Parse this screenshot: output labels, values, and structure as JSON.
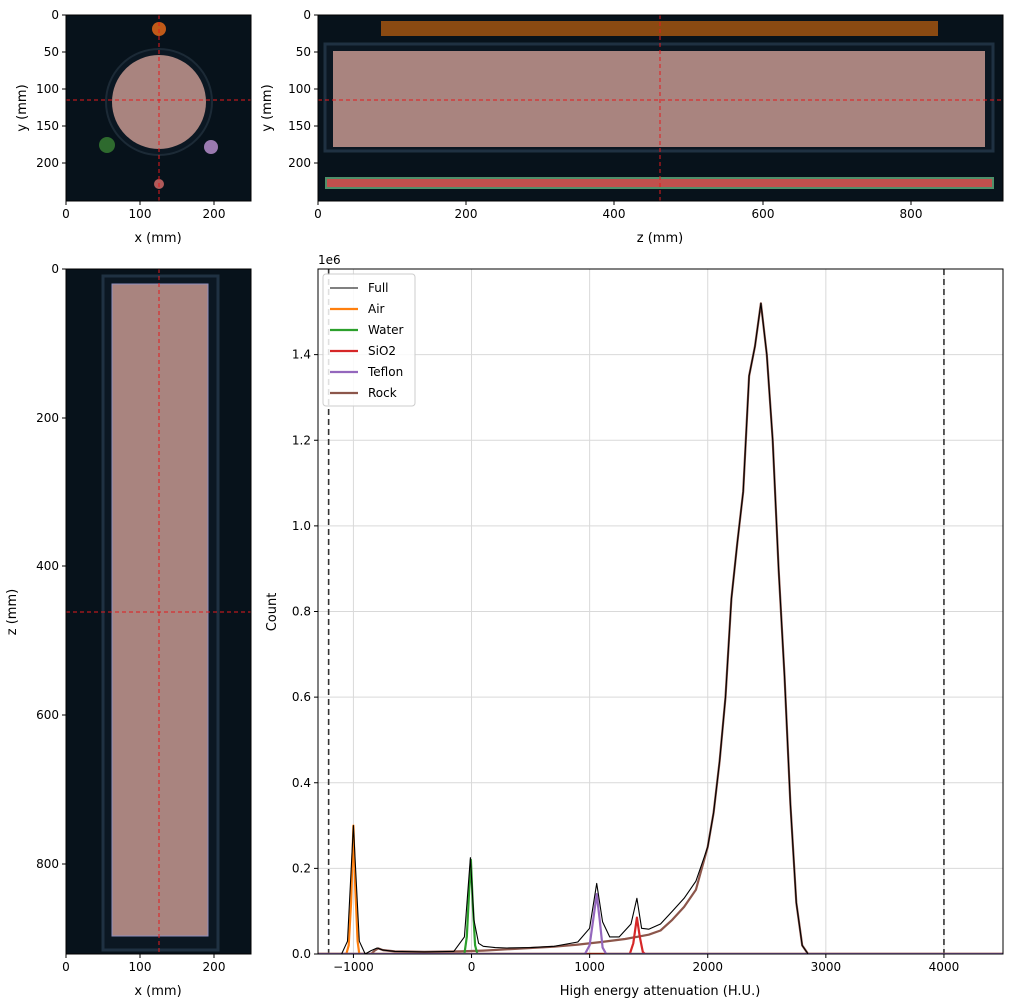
{
  "panels": {
    "axial": {
      "xlabel": "x (mm)",
      "ylabel": "y (mm)",
      "xticks": [
        "0",
        "100",
        "200"
      ],
      "yticks": [
        "0",
        "50",
        "100",
        "150",
        "200"
      ]
    },
    "sagittal": {
      "xlabel": "z (mm)",
      "ylabel": "y (mm)",
      "xticks": [
        "0",
        "200",
        "400",
        "600",
        "800"
      ],
      "yticks": [
        "0",
        "50",
        "100",
        "150",
        "200"
      ]
    },
    "coronal": {
      "xlabel": "x (mm)",
      "ylabel": "z (mm)",
      "xticks": [
        "0",
        "100",
        "200"
      ],
      "yticks": [
        "0",
        "200",
        "400",
        "600",
        "800"
      ]
    }
  },
  "colors": {
    "background": "#07121b",
    "rock": "#a9847f",
    "crosshair": "#e31a1c",
    "air": "#ff7f0e",
    "water": "#2ca02c",
    "sio2": "#d62728",
    "teflon": "#9467bd",
    "full": "#000000"
  },
  "chart_data": {
    "type": "line",
    "xlabel": "High energy attenuation (H.U.)",
    "ylabel": "Count",
    "offset_label": "1e6",
    "xlim": [
      -1300,
      4500
    ],
    "ylim": [
      0,
      1600000
    ],
    "xticks": [
      "−1000",
      "0",
      "1000",
      "2000",
      "3000",
      "4000"
    ],
    "yticks": [
      "0.0",
      "0.2",
      "0.4",
      "0.6",
      "0.8",
      "1.0",
      "1.2",
      "1.4"
    ],
    "grid": true,
    "legend_position": "top-left",
    "vlines": [
      -1210,
      4000
    ],
    "series": [
      {
        "name": "Full",
        "color": "#000000",
        "points": [
          [
            -1300,
            0
          ],
          [
            -1100,
            0
          ],
          [
            -1050,
            30000
          ],
          [
            -1000,
            300000
          ],
          [
            -950,
            30000
          ],
          [
            -900,
            0
          ],
          [
            -850,
            8000
          ],
          [
            -800,
            14000
          ],
          [
            -750,
            9000
          ],
          [
            -650,
            6000
          ],
          [
            -400,
            5000
          ],
          [
            -150,
            6000
          ],
          [
            -60,
            40000
          ],
          [
            -10,
            225000
          ],
          [
            20,
            80000
          ],
          [
            60,
            25000
          ],
          [
            100,
            18000
          ],
          [
            200,
            15000
          ],
          [
            300,
            14000
          ],
          [
            500,
            15000
          ],
          [
            700,
            18000
          ],
          [
            900,
            28000
          ],
          [
            1000,
            60000
          ],
          [
            1060,
            165000
          ],
          [
            1110,
            75000
          ],
          [
            1170,
            40000
          ],
          [
            1250,
            40000
          ],
          [
            1350,
            70000
          ],
          [
            1400,
            130000
          ],
          [
            1440,
            60000
          ],
          [
            1500,
            58000
          ],
          [
            1600,
            70000
          ],
          [
            1700,
            100000
          ],
          [
            1800,
            130000
          ],
          [
            1900,
            170000
          ],
          [
            2000,
            250000
          ],
          [
            2050,
            330000
          ],
          [
            2100,
            450000
          ],
          [
            2150,
            600000
          ],
          [
            2200,
            830000
          ],
          [
            2250,
            960000
          ],
          [
            2300,
            1080000
          ],
          [
            2350,
            1350000
          ],
          [
            2400,
            1420000
          ],
          [
            2450,
            1520000
          ],
          [
            2500,
            1400000
          ],
          [
            2550,
            1200000
          ],
          [
            2600,
            900000
          ],
          [
            2650,
            650000
          ],
          [
            2700,
            350000
          ],
          [
            2750,
            120000
          ],
          [
            2800,
            20000
          ],
          [
            2850,
            0
          ],
          [
            4500,
            0
          ]
        ]
      },
      {
        "name": "Air",
        "color": "#ff7f0e",
        "points": [
          [
            -1300,
            0
          ],
          [
            -1060,
            0
          ],
          [
            -1040,
            20000
          ],
          [
            -1020,
            120000
          ],
          [
            -1000,
            300000
          ],
          [
            -985,
            160000
          ],
          [
            -965,
            30000
          ],
          [
            -950,
            0
          ],
          [
            4500,
            0
          ]
        ]
      },
      {
        "name": "Water",
        "color": "#2ca02c",
        "points": [
          [
            -1300,
            0
          ],
          [
            -60,
            0
          ],
          [
            -40,
            40000
          ],
          [
            -20,
            150000
          ],
          [
            -5,
            220000
          ],
          [
            10,
            120000
          ],
          [
            30,
            20000
          ],
          [
            50,
            0
          ],
          [
            4500,
            0
          ]
        ]
      },
      {
        "name": "SiO2",
        "color": "#d62728",
        "points": [
          [
            -1300,
            0
          ],
          [
            1340,
            0
          ],
          [
            1370,
            25000
          ],
          [
            1400,
            85000
          ],
          [
            1425,
            40000
          ],
          [
            1450,
            5000
          ],
          [
            1470,
            0
          ],
          [
            4500,
            0
          ]
        ]
      },
      {
        "name": "Teflon",
        "color": "#9467bd",
        "points": [
          [
            -1300,
            0
          ],
          [
            960,
            0
          ],
          [
            1000,
            20000
          ],
          [
            1030,
            80000
          ],
          [
            1060,
            140000
          ],
          [
            1085,
            80000
          ],
          [
            1110,
            15000
          ],
          [
            1140,
            0
          ],
          [
            4500,
            0
          ]
        ]
      },
      {
        "name": "Rock",
        "color": "#8c564b",
        "points": [
          [
            -1300,
            0
          ],
          [
            -850,
            0
          ],
          [
            -820,
            8000
          ],
          [
            -790,
            13000
          ],
          [
            -750,
            9000
          ],
          [
            -650,
            6000
          ],
          [
            -400,
            5000
          ],
          [
            -100,
            6000
          ],
          [
            100,
            8000
          ],
          [
            300,
            11000
          ],
          [
            500,
            14000
          ],
          [
            700,
            17000
          ],
          [
            900,
            22000
          ],
          [
            1100,
            28000
          ],
          [
            1300,
            35000
          ],
          [
            1500,
            45000
          ],
          [
            1600,
            55000
          ],
          [
            1700,
            80000
          ],
          [
            1800,
            110000
          ],
          [
            1900,
            150000
          ],
          [
            2000,
            250000
          ],
          [
            2050,
            330000
          ],
          [
            2100,
            450000
          ],
          [
            2150,
            600000
          ],
          [
            2200,
            830000
          ],
          [
            2250,
            960000
          ],
          [
            2300,
            1080000
          ],
          [
            2350,
            1350000
          ],
          [
            2400,
            1420000
          ],
          [
            2450,
            1520000
          ],
          [
            2500,
            1400000
          ],
          [
            2550,
            1200000
          ],
          [
            2600,
            900000
          ],
          [
            2650,
            650000
          ],
          [
            2700,
            350000
          ],
          [
            2750,
            120000
          ],
          [
            2800,
            20000
          ],
          [
            2850,
            0
          ],
          [
            4500,
            0
          ]
        ]
      }
    ]
  }
}
